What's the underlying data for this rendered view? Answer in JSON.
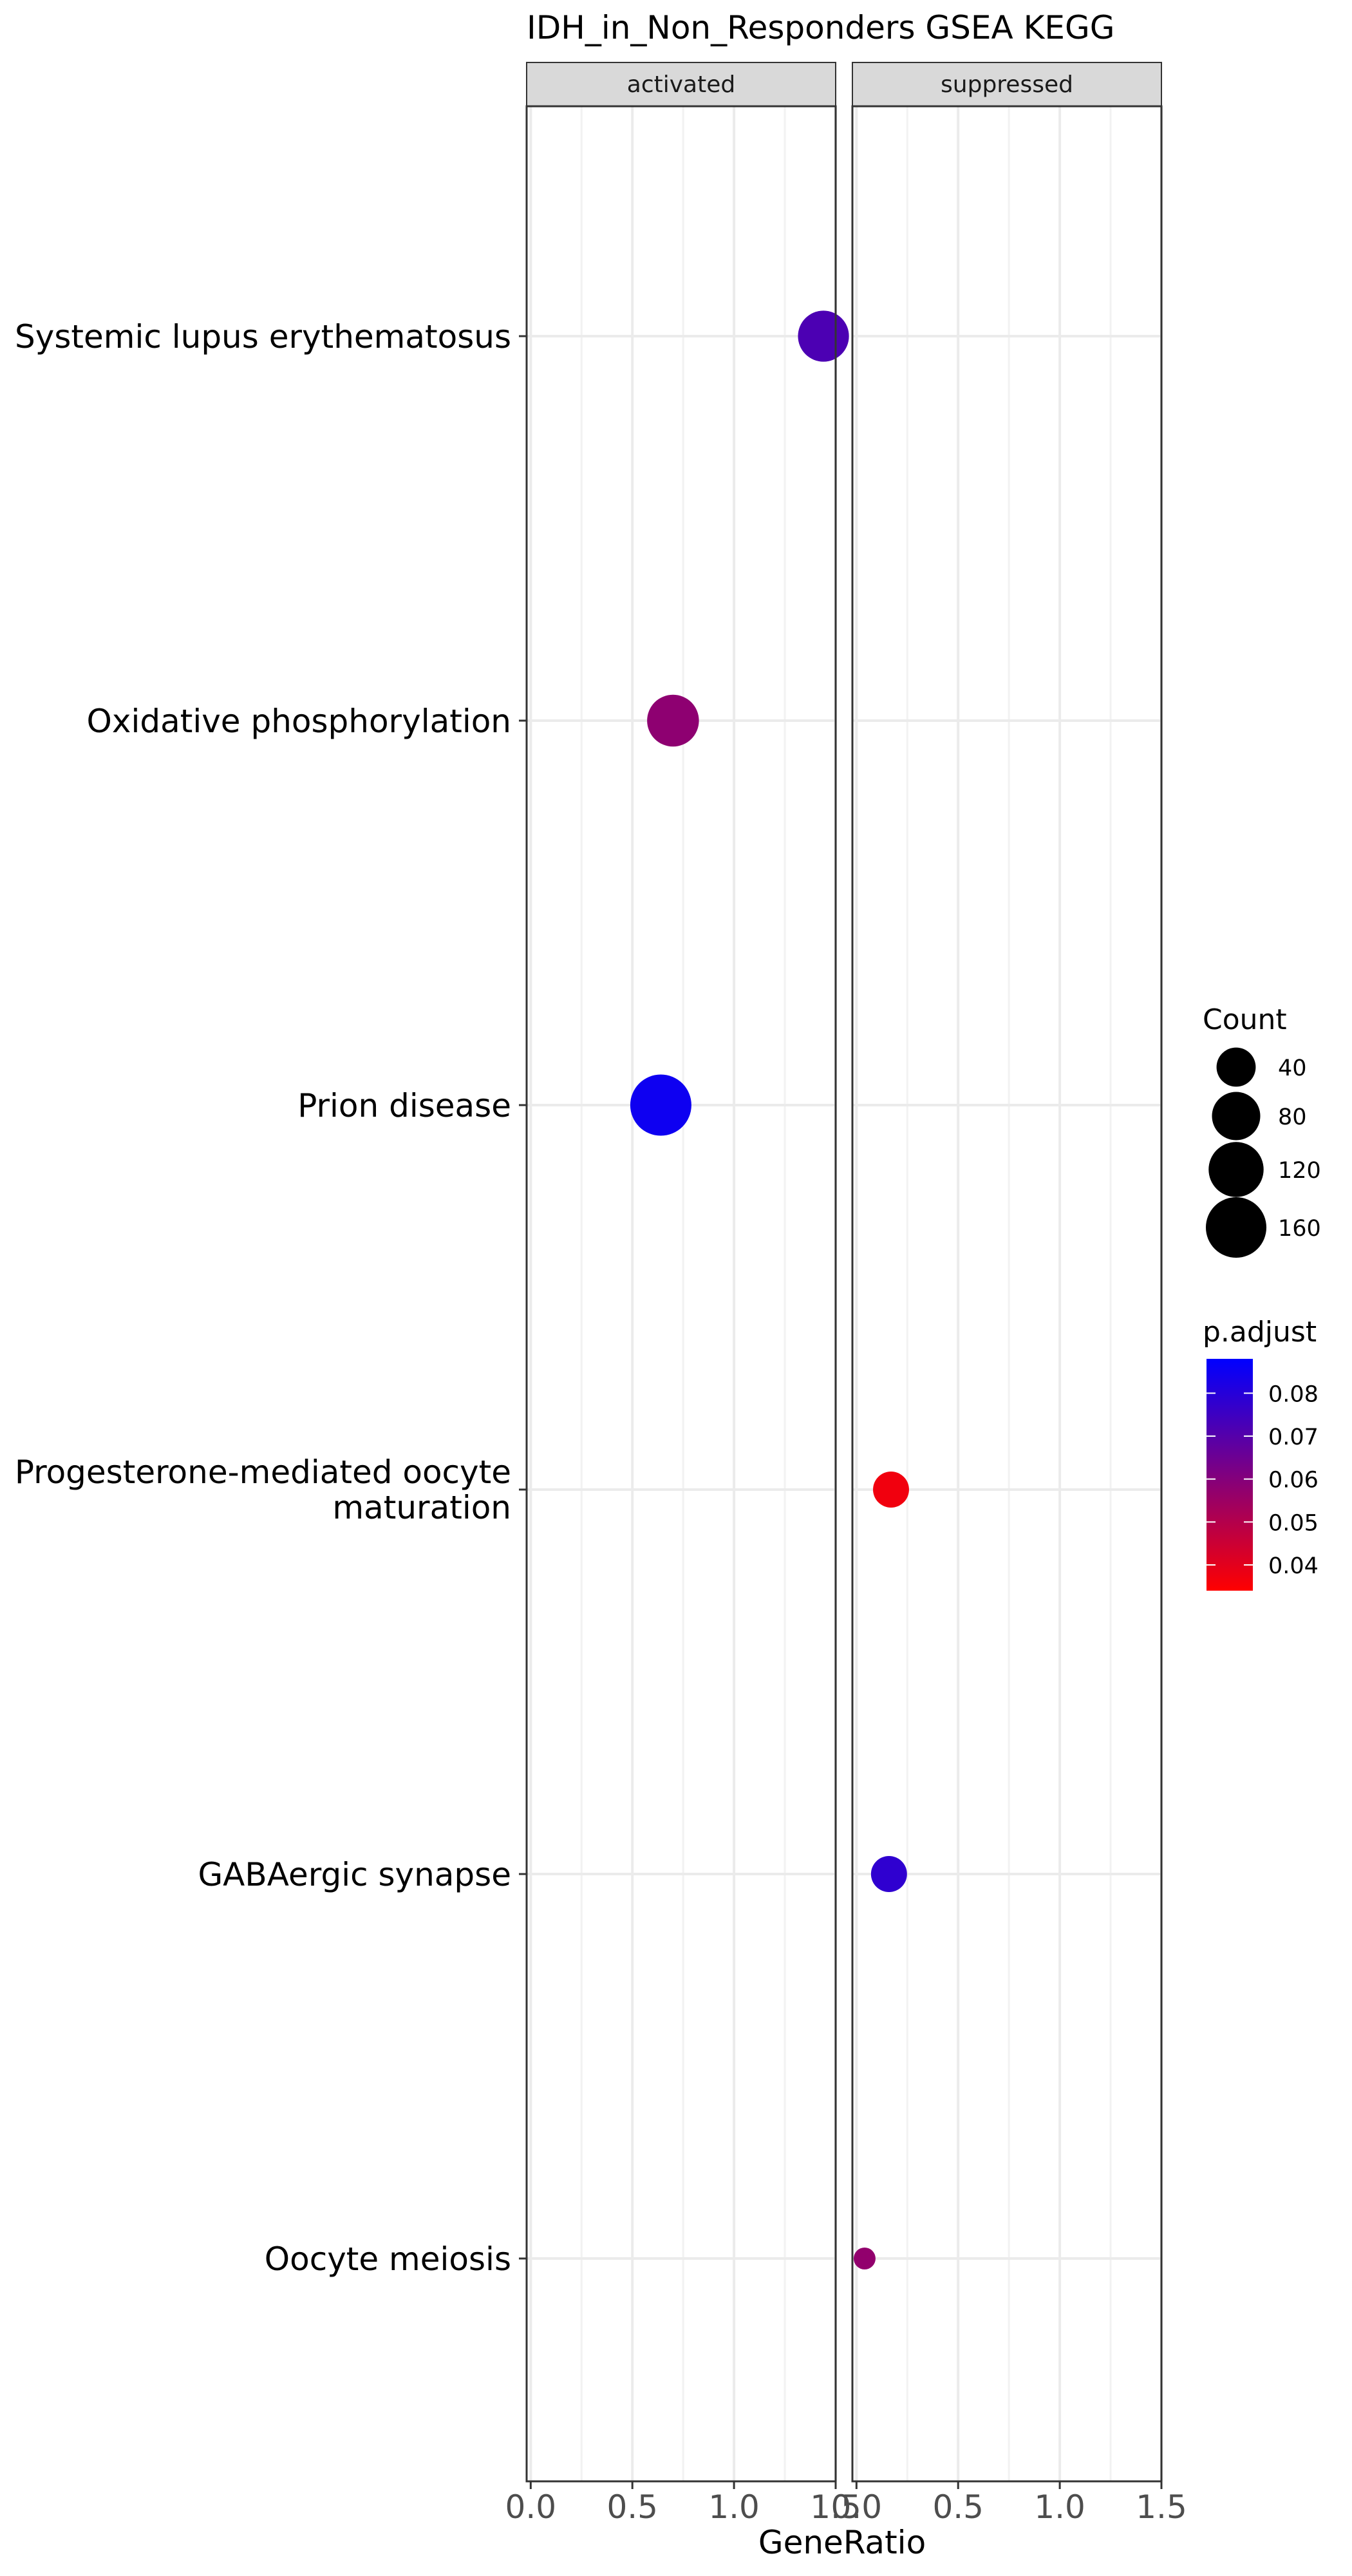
{
  "chart_data": {
    "type": "scatter",
    "title": "IDH_in_Non_Responders GSEA KEGG",
    "xlabel": "GeneRatio",
    "ylabel": "",
    "xlim": [
      -0.02,
      1.5
    ],
    "x_ticks": [
      "0.0",
      "0.5",
      "1.0",
      "1.5"
    ],
    "facets": [
      "activated",
      "suppressed"
    ],
    "categories": [
      "Systemic lupus erythematosus",
      "Oxidative phosphorylation",
      "Prion disease",
      "Progesterone-mediated oocyte maturation",
      "GABAergic synapse",
      "Oocyte meiosis"
    ],
    "points": [
      {
        "facet": "activated",
        "category": "Systemic lupus erythematosus",
        "x": 1.44,
        "count": 95,
        "p_adjust": 0.072
      },
      {
        "facet": "activated",
        "category": "Oxidative phosphorylation",
        "x": 0.7,
        "count": 100,
        "p_adjust": 0.058
      },
      {
        "facet": "activated",
        "category": "Prion disease",
        "x": 0.64,
        "count": 165,
        "p_adjust": 0.085
      },
      {
        "facet": "suppressed",
        "category": "Progesterone-mediated oocyte maturation",
        "x": 0.17,
        "count": 30,
        "p_adjust": 0.037
      },
      {
        "facet": "suppressed",
        "category": "GABAergic synapse",
        "x": 0.16,
        "count": 30,
        "p_adjust": 0.078
      },
      {
        "facet": "suppressed",
        "category": "Oocyte meiosis",
        "x": 0.04,
        "count": 10,
        "p_adjust": 0.057
      }
    ],
    "size_legend": {
      "title": "Count",
      "values": [
        40,
        80,
        120,
        160
      ],
      "labels": [
        "40",
        "80",
        "120",
        "160"
      ]
    },
    "color_legend": {
      "title": "p.adjust",
      "labels": [
        "0.08",
        "0.07",
        "0.06",
        "0.05",
        "0.04"
      ],
      "values": [
        0.08,
        0.07,
        0.06,
        0.05,
        0.04
      ],
      "range": [
        0.034,
        0.088
      ],
      "low_color": "#ff0000",
      "high_color": "#0000ff"
    },
    "grid": true,
    "legend_position": "right"
  }
}
